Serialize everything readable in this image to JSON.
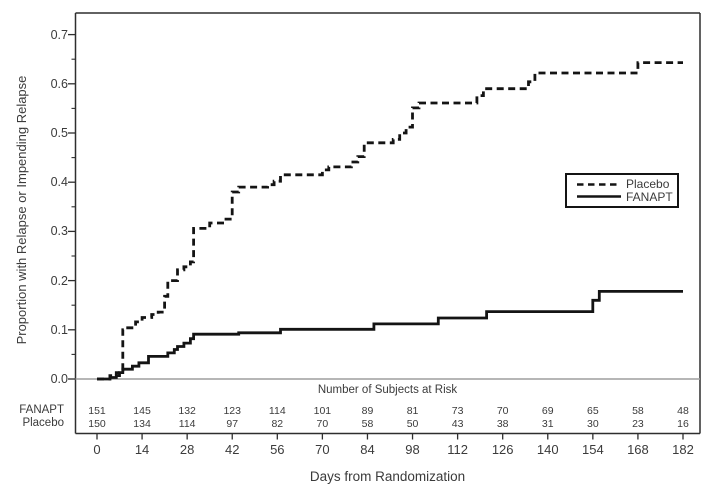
{
  "colors": {
    "line": "#141414",
    "axis": "#2e2e2e",
    "text": "#3b3b3b",
    "zero_line": "#9e9e9e",
    "background": "#ffffff"
  },
  "chart_data": {
    "type": "line",
    "subtype": "kaplan-meier-step",
    "title": "",
    "xlabel": "Days from Randomization",
    "ylabel": "Proportion with Relapse or Impending Relapse",
    "xlim": [
      0,
      182
    ],
    "ylim": [
      0.0,
      0.7
    ],
    "grid": false,
    "x_ticks": [
      0,
      14,
      28,
      42,
      56,
      70,
      84,
      98,
      112,
      126,
      140,
      154,
      168,
      182
    ],
    "y_ticks": [
      0.0,
      0.1,
      0.2,
      0.3,
      0.4,
      0.5,
      0.6,
      0.7
    ],
    "y_minor_tick_step": 0.05,
    "legend_position": "right-middle",
    "series": [
      {
        "name": "Placebo",
        "line": "dashed",
        "steps": [
          [
            0,
            0
          ],
          [
            4,
            0.007
          ],
          [
            6,
            0.013
          ],
          [
            7,
            0.018
          ],
          [
            8,
            0.1
          ],
          [
            9,
            0.104
          ],
          [
            12,
            0.116
          ],
          [
            14,
            0.125
          ],
          [
            17,
            0.131
          ],
          [
            19,
            0.136
          ],
          [
            21,
            0.168
          ],
          [
            22,
            0.2
          ],
          [
            25,
            0.222
          ],
          [
            27,
            0.228
          ],
          [
            29,
            0.238
          ],
          [
            30,
            0.306
          ],
          [
            35,
            0.317
          ],
          [
            39,
            0.325
          ],
          [
            42,
            0.38
          ],
          [
            44,
            0.39
          ],
          [
            53,
            0.395
          ],
          [
            55,
            0.402
          ],
          [
            57,
            0.415
          ],
          [
            70,
            0.425
          ],
          [
            72,
            0.431
          ],
          [
            79,
            0.441
          ],
          [
            81,
            0.452
          ],
          [
            83,
            0.48
          ],
          [
            92,
            0.487
          ],
          [
            94,
            0.5
          ],
          [
            96,
            0.512
          ],
          [
            98,
            0.551
          ],
          [
            100,
            0.561
          ],
          [
            118,
            0.576
          ],
          [
            120,
            0.59
          ],
          [
            134,
            0.604
          ],
          [
            136,
            0.622
          ],
          [
            168,
            0.643
          ],
          [
            182,
            0.643
          ]
        ]
      },
      {
        "name": "FANAPT",
        "line": "solid",
        "steps": [
          [
            0,
            0
          ],
          [
            4,
            0.003
          ],
          [
            6,
            0.007
          ],
          [
            7,
            0.013
          ],
          [
            8,
            0.02
          ],
          [
            11,
            0.026
          ],
          [
            13,
            0.033
          ],
          [
            16,
            0.046
          ],
          [
            22,
            0.053
          ],
          [
            24,
            0.06
          ],
          [
            25,
            0.066
          ],
          [
            27,
            0.073
          ],
          [
            29,
            0.082
          ],
          [
            30,
            0.091
          ],
          [
            44,
            0.094
          ],
          [
            57,
            0.101
          ],
          [
            86,
            0.112
          ],
          [
            106,
            0.124
          ],
          [
            121,
            0.137
          ],
          [
            154,
            0.16
          ],
          [
            156,
            0.178
          ],
          [
            182,
            0.178
          ]
        ]
      }
    ],
    "risk_table": {
      "title": "Number of Subjects at Risk",
      "days": [
        0,
        14,
        28,
        42,
        56,
        70,
        84,
        98,
        112,
        126,
        140,
        154,
        168,
        182
      ],
      "rows": [
        {
          "label": "FANAPT",
          "values": [
            151,
            145,
            132,
            123,
            114,
            101,
            89,
            81,
            73,
            70,
            69,
            65,
            58,
            48
          ]
        },
        {
          "label": "Placebo",
          "values": [
            150,
            134,
            114,
            97,
            82,
            70,
            58,
            50,
            43,
            38,
            31,
            30,
            23,
            16
          ]
        }
      ]
    }
  }
}
